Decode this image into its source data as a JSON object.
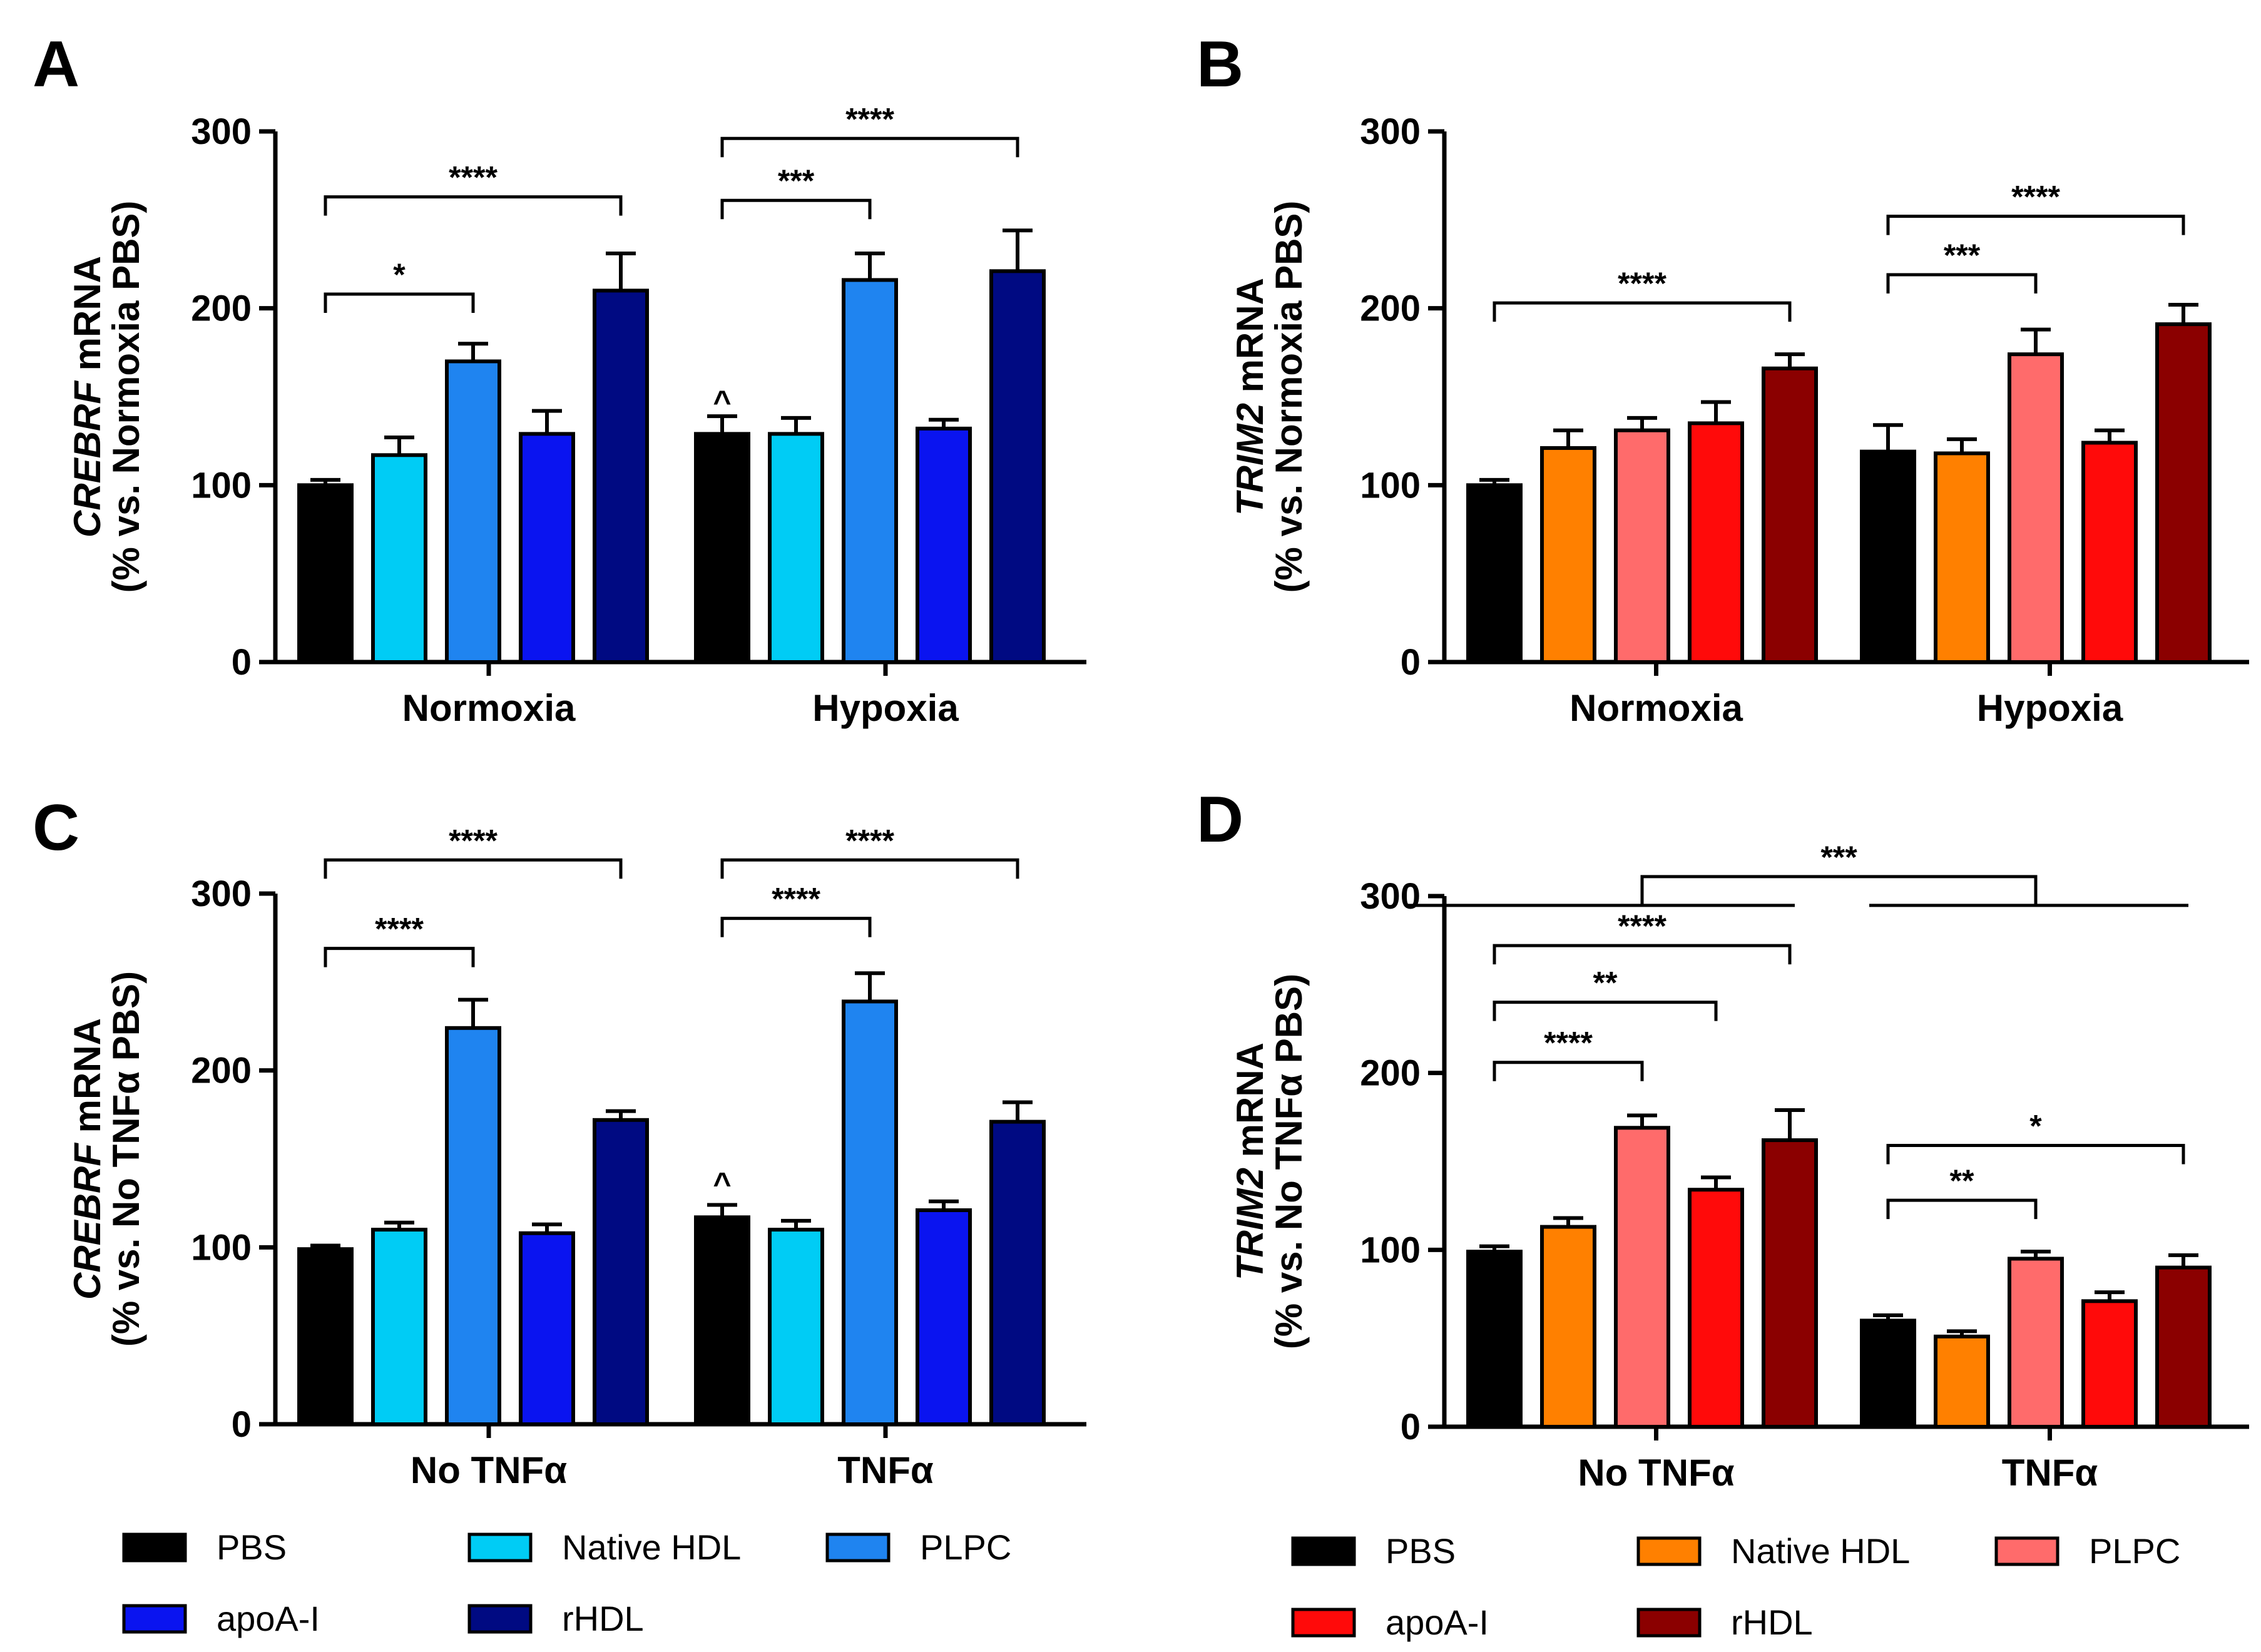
{
  "chart_data": [
    {
      "panel": "A",
      "type": "bar",
      "categories": [
        "Normoxia",
        "Hypoxia"
      ],
      "ylabel": [
        "CREBRF",
        " mRNA",
        "(% vs. Normoxia PBS)"
      ],
      "yticks": [
        "0",
        "100",
        "200",
        "300"
      ],
      "ylim": [
        0,
        300
      ],
      "series": [
        {
          "name": "PBS",
          "color": "#000000",
          "values": [
            100,
            129
          ],
          "errors": [
            3,
            10
          ]
        },
        {
          "name": "Native HDL",
          "color": "#00CCF5",
          "values": [
            117,
            129
          ],
          "errors": [
            10,
            9
          ]
        },
        {
          "name": "PLPC",
          "color": "#1F84F0",
          "values": [
            170,
            216
          ],
          "errors": [
            10,
            15
          ]
        },
        {
          "name": "apoA-I",
          "color": "#0A14F0",
          "values": [
            129,
            132
          ],
          "errors": [
            13,
            5
          ]
        },
        {
          "name": "rHDL",
          "color": "#000A82",
          "values": [
            210,
            221
          ],
          "errors": [
            21,
            23
          ]
        }
      ],
      "annotations": [
        {
          "text": "*",
          "from": [
            0,
            0
          ],
          "to": [
            0,
            2
          ],
          "y": 208
        },
        {
          "text": "****",
          "from": [
            0,
            0
          ],
          "to": [
            0,
            4
          ],
          "y": 263
        },
        {
          "text": "***",
          "from": [
            1,
            0
          ],
          "to": [
            1,
            2
          ],
          "y": 261
        },
        {
          "text": "****",
          "from": [
            1,
            0
          ],
          "to": [
            1,
            4
          ],
          "y": 296
        },
        {
          "text": "^",
          "at": [
            1,
            0
          ],
          "y": 151
        }
      ]
    },
    {
      "panel": "B",
      "type": "bar",
      "categories": [
        "Normoxia",
        "Hypoxia"
      ],
      "ylabel": [
        "TRIM2",
        " mRNA",
        "(% vs. Normoxia PBS)"
      ],
      "yticks": [
        "0",
        "100",
        "200",
        "300"
      ],
      "ylim": [
        0,
        300
      ],
      "series": [
        {
          "name": "PBS",
          "color": "#000000",
          "values": [
            100,
            119
          ],
          "errors": [
            3,
            15
          ]
        },
        {
          "name": "Native HDL",
          "color": "#FF8000",
          "values": [
            121,
            118
          ],
          "errors": [
            10,
            8
          ]
        },
        {
          "name": "PLPC",
          "color": "#FF6B6B",
          "values": [
            131,
            174
          ],
          "errors": [
            7,
            14
          ]
        },
        {
          "name": "apoA-I",
          "color": "#FF0A0A",
          "values": [
            135,
            124
          ],
          "errors": [
            12,
            7
          ]
        },
        {
          "name": "rHDL",
          "color": "#8B0000",
          "values": [
            166,
            191
          ],
          "errors": [
            8,
            11
          ]
        }
      ],
      "annotations": [
        {
          "text": "****",
          "from": [
            0,
            0
          ],
          "to": [
            0,
            4
          ],
          "y": 203
        },
        {
          "text": "***",
          "from": [
            1,
            0
          ],
          "to": [
            1,
            2
          ],
          "y": 219
        },
        {
          "text": "****",
          "from": [
            1,
            0
          ],
          "to": [
            1,
            4
          ],
          "y": 252
        }
      ]
    },
    {
      "panel": "C",
      "type": "bar",
      "categories": [
        "No TNFα",
        "TNFα"
      ],
      "ylabel": [
        "CREBRF",
        " mRNA",
        "(% vs. No TNFα PBS)"
      ],
      "yticks": [
        "0",
        "100",
        "200",
        "300"
      ],
      "ylim": [
        0,
        300
      ],
      "series": [
        {
          "name": "PBS",
          "color": "#000000",
          "values": [
            99,
            117
          ],
          "errors": [
            2,
            7
          ]
        },
        {
          "name": "Native HDL",
          "color": "#00CCF5",
          "values": [
            110,
            110
          ],
          "errors": [
            4,
            5
          ]
        },
        {
          "name": "PLPC",
          "color": "#1F84F0",
          "values": [
            224,
            239
          ],
          "errors": [
            16,
            16
          ]
        },
        {
          "name": "apoA-I",
          "color": "#0A14F0",
          "values": [
            108,
            121
          ],
          "errors": [
            5,
            5
          ]
        },
        {
          "name": "rHDL",
          "color": "#000A82",
          "values": [
            172,
            171
          ],
          "errors": [
            5,
            11
          ]
        }
      ],
      "annotations": [
        {
          "text": "****",
          "from": [
            0,
            0
          ],
          "to": [
            0,
            2
          ],
          "y": 269
        },
        {
          "text": "****",
          "from": [
            0,
            0
          ],
          "to": [
            0,
            4
          ],
          "y": 319
        },
        {
          "text": "****",
          "from": [
            1,
            0
          ],
          "to": [
            1,
            2
          ],
          "y": 286
        },
        {
          "text": "****",
          "from": [
            1,
            0
          ],
          "to": [
            1,
            4
          ],
          "y": 319
        },
        {
          "text": "^",
          "at": [
            1,
            0
          ],
          "y": 140
        }
      ]
    },
    {
      "panel": "D",
      "type": "bar",
      "categories": [
        "No TNFα",
        "TNFα"
      ],
      "ylabel": [
        "TRIM2",
        " mRNA",
        "(% vs. No TNFα PBS)"
      ],
      "yticks": [
        "0",
        "100",
        "200",
        "300"
      ],
      "ylim": [
        0,
        300
      ],
      "series": [
        {
          "name": "PBS",
          "color": "#000000",
          "values": [
            99,
            60
          ],
          "errors": [
            3,
            3
          ]
        },
        {
          "name": "Native HDL",
          "color": "#FF8000",
          "values": [
            113,
            51
          ],
          "errors": [
            5,
            3
          ]
        },
        {
          "name": "PLPC",
          "color": "#FF6B6B",
          "values": [
            169,
            95
          ],
          "errors": [
            7,
            4
          ]
        },
        {
          "name": "apoA-I",
          "color": "#FF0A0A",
          "values": [
            134,
            71
          ],
          "errors": [
            7,
            5
          ]
        },
        {
          "name": "rHDL",
          "color": "#8B0000",
          "values": [
            162,
            90
          ],
          "errors": [
            17,
            7
          ]
        }
      ],
      "annotations": [
        {
          "text": "****",
          "from": [
            0,
            0
          ],
          "to": [
            0,
            2
          ],
          "y": 206
        },
        {
          "text": "**",
          "from": [
            0,
            0
          ],
          "to": [
            0,
            3
          ],
          "y": 240
        },
        {
          "text": "****",
          "from": [
            0,
            0
          ],
          "to": [
            0,
            4
          ],
          "y": 272
        },
        {
          "text": "**",
          "from": [
            1,
            0
          ],
          "to": [
            1,
            2
          ],
          "y": 128
        },
        {
          "text": "*",
          "from": [
            1,
            0
          ],
          "to": [
            1,
            4
          ],
          "y": 159
        },
        {
          "text": "***",
          "group_compare": true,
          "y": 311
        }
      ]
    }
  ],
  "legends": [
    {
      "entries": [
        {
          "label": "PBS",
          "color": "#000000"
        },
        {
          "label": "Native HDL",
          "color": "#00CCF5"
        },
        {
          "label": "PLPC",
          "color": "#1F84F0"
        },
        {
          "label": "apoA-I",
          "color": "#0A14F0"
        },
        {
          "label": "rHDL",
          "color": "#000A82"
        }
      ]
    },
    {
      "entries": [
        {
          "label": "PBS",
          "color": "#000000"
        },
        {
          "label": "Native HDL",
          "color": "#FF8000"
        },
        {
          "label": "PLPC",
          "color": "#FF6B6B"
        },
        {
          "label": "apoA-I",
          "color": "#FF0A0A"
        },
        {
          "label": "rHDL",
          "color": "#8B0000"
        }
      ]
    }
  ]
}
